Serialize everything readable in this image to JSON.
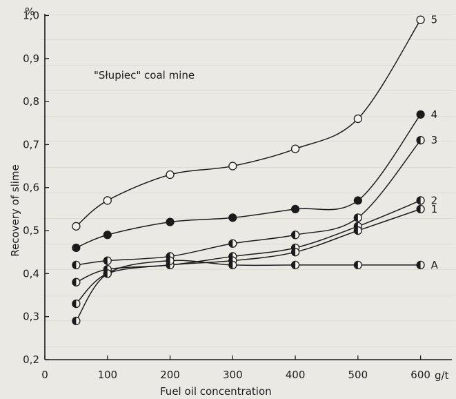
{
  "chart_data": {
    "type": "scatter",
    "title": "",
    "annotation": "\"Słupiec\" coal mine",
    "xlabel": "Fuel oil concentration",
    "ylabel": "Recovery of slime",
    "x_unit": "g/t",
    "y_unit": "%",
    "xlim": [
      0,
      650
    ],
    "ylim": [
      0.2,
      1.02
    ],
    "x_ticks": [
      0,
      100,
      200,
      300,
      400,
      500,
      600
    ],
    "y_ticks": [
      0.2,
      0.3,
      0.4,
      0.5,
      0.6,
      0.7,
      0.8,
      0.9,
      1.0
    ],
    "x_tick_labels": [
      "0",
      "100",
      "200",
      "300",
      "400",
      "500",
      "600"
    ],
    "y_tick_labels": [
      "0,2",
      "0,3",
      "0,4",
      "0,5",
      "0,6",
      "0,7",
      "0,8",
      "0,9",
      "1,0"
    ],
    "x_unit_label": "g/t",
    "y_unit_label": "%",
    "grid": false,
    "series": [
      {
        "name": "5",
        "marker": "open",
        "x": [
          50,
          100,
          200,
          300,
          400,
          500,
          600
        ],
        "y": [
          0.51,
          0.57,
          0.63,
          0.65,
          0.69,
          0.76,
          0.99
        ]
      },
      {
        "name": "4",
        "marker": "filled",
        "x": [
          50,
          100,
          200,
          300,
          400,
          500,
          600
        ],
        "y": [
          0.46,
          0.49,
          0.52,
          0.53,
          0.55,
          0.57,
          0.77
        ]
      },
      {
        "name": "3",
        "marker": "half",
        "x": [
          50,
          100,
          200,
          300,
          400,
          500,
          600
        ],
        "y": [
          0.42,
          0.43,
          0.44,
          0.47,
          0.49,
          0.53,
          0.71
        ]
      },
      {
        "name": "2",
        "marker": "half",
        "x": [
          50,
          100,
          200,
          300,
          400,
          500,
          600
        ],
        "y": [
          0.38,
          0.41,
          0.42,
          0.44,
          0.46,
          0.51,
          0.57
        ]
      },
      {
        "name": "1",
        "marker": "half",
        "x": [
          50,
          100,
          200,
          300,
          400,
          500,
          600
        ],
        "y": [
          0.33,
          0.4,
          0.42,
          0.43,
          0.45,
          0.5,
          0.55
        ]
      },
      {
        "name": "A",
        "marker": "half",
        "x": [
          50,
          100,
          200,
          300,
          400,
          500,
          600
        ],
        "y": [
          0.29,
          0.4,
          0.43,
          0.42,
          0.42,
          0.42,
          0.42
        ]
      }
    ],
    "series_labels": [
      "5",
      "4",
      "3",
      "2",
      "1",
      "A"
    ]
  }
}
